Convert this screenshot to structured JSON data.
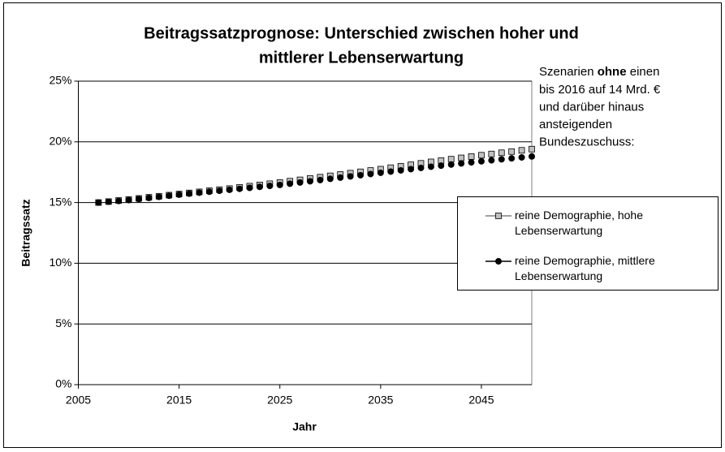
{
  "chart_data": {
    "type": "scatter",
    "title": [
      "Beitragssatzprognose: Unterschied zwischen hoher und",
      "mittlerer Lebenserwartung"
    ],
    "x_label": "Jahr",
    "y_label": "Beitragssatz",
    "annotation_first_line": [
      "Szenarien",
      "ohne",
      "einen"
    ],
    "annotation_lines": [
      "bis 2016 auf 14 Mrd. €",
      "und darüber hinaus",
      "ansteigenden",
      "Bundeszuschuss:"
    ],
    "x": [
      2007,
      2008,
      2009,
      2010,
      2011,
      2012,
      2013,
      2014,
      2015,
      2016,
      2017,
      2018,
      2019,
      2020,
      2021,
      2022,
      2023,
      2024,
      2025,
      2026,
      2027,
      2028,
      2029,
      2030,
      2031,
      2032,
      2033,
      2034,
      2035,
      2036,
      2037,
      2038,
      2039,
      2040,
      2041,
      2042,
      2043,
      2044,
      2045,
      2046,
      2047,
      2048,
      2049,
      2050
    ],
    "series": [
      {
        "name": "reine Demographie, hohe Lebenserwartung",
        "color": "#c0c0c0",
        "marker": "square",
        "values": [
          15.0,
          15.08,
          15.17,
          15.25,
          15.34,
          15.43,
          15.52,
          15.61,
          15.7,
          15.79,
          15.88,
          15.97,
          16.06,
          16.15,
          16.25,
          16.35,
          16.45,
          16.55,
          16.65,
          16.76,
          16.87,
          16.98,
          17.09,
          17.2,
          17.31,
          17.42,
          17.53,
          17.64,
          17.75,
          17.87,
          17.99,
          18.11,
          18.23,
          18.35,
          18.46,
          18.57,
          18.68,
          18.79,
          18.9,
          19.0,
          19.1,
          19.2,
          19.3,
          19.4
        ]
      },
      {
        "name": "reine Demographie, mittlere Lebenserwartung",
        "color": "#000000",
        "marker": "circle",
        "values": [
          15.0,
          15.07,
          15.13,
          15.2,
          15.29,
          15.38,
          15.47,
          15.56,
          15.65,
          15.73,
          15.81,
          15.89,
          15.97,
          16.05,
          16.13,
          16.21,
          16.29,
          16.37,
          16.45,
          16.55,
          16.65,
          16.75,
          16.85,
          16.95,
          17.05,
          17.15,
          17.25,
          17.35,
          17.45,
          17.55,
          17.65,
          17.75,
          17.85,
          17.95,
          18.04,
          18.13,
          18.22,
          18.31,
          18.4,
          18.48,
          18.56,
          18.64,
          18.72,
          18.8
        ]
      }
    ],
    "xlim": [
      2005,
      2050
    ],
    "xticks": [
      2005,
      2015,
      2025,
      2035,
      2045
    ],
    "ylim": [
      0,
      25
    ],
    "yticks": [
      {
        "value": 0,
        "label": "0%"
      },
      {
        "value": 5,
        "label": "5%"
      },
      {
        "value": 10,
        "label": "10%"
      },
      {
        "value": 15,
        "label": "15%"
      },
      {
        "value": 20,
        "label": "20%"
      },
      {
        "value": 25,
        "label": "25%"
      }
    ],
    "grid": true
  }
}
